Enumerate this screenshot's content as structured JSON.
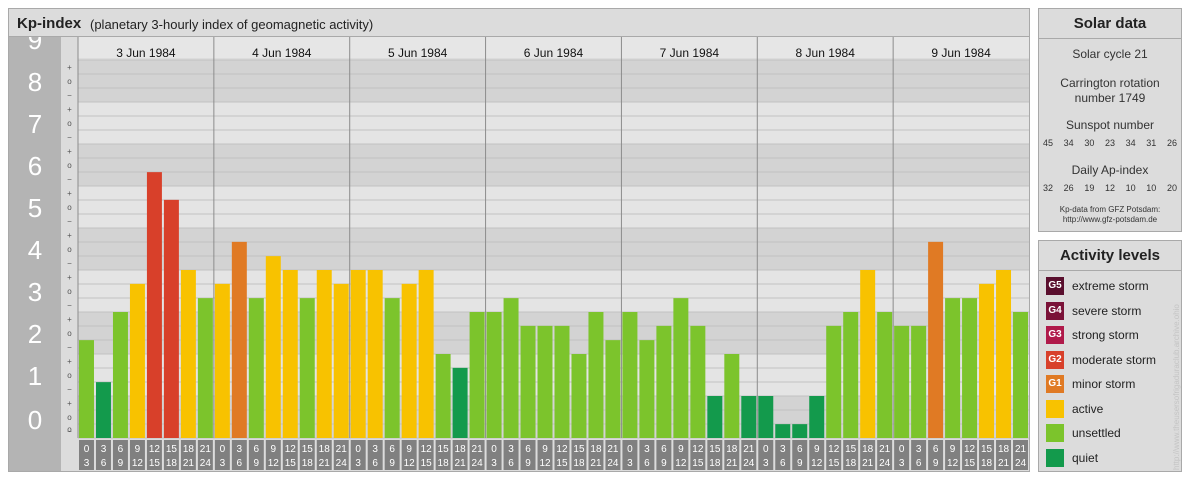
{
  "title": {
    "main": "Kp-index",
    "sub": "(planetary 3-hourly index of geomagnetic activity)"
  },
  "chart_data": {
    "type": "bar",
    "title": "Kp-index",
    "subtitle": "(planetary 3-hourly index of geomagnetic activity)",
    "ylim": [
      0,
      9
    ],
    "y_ticks": [
      "0",
      "1",
      "2",
      "3",
      "4",
      "5",
      "6",
      "7",
      "8",
      "9"
    ],
    "minor_tick_labels": [
      "+",
      "o",
      "−"
    ],
    "days": [
      "3 Jun 1984",
      "4 Jun 1984",
      "5 Jun 1984",
      "6 Jun 1984",
      "7 Jun 1984",
      "8 Jun 1984",
      "9 Jun 1984"
    ],
    "interval_starts": [
      "0",
      "3",
      "6",
      "9",
      "12",
      "15",
      "18",
      "21"
    ],
    "interval_ends": [
      "3",
      "6",
      "9",
      "12",
      "15",
      "18",
      "21",
      "24"
    ],
    "values": [
      2.33,
      1.33,
      3.0,
      3.67,
      6.33,
      5.67,
      4.0,
      3.33,
      3.67,
      4.67,
      3.33,
      4.33,
      4.0,
      3.33,
      4.0,
      3.67,
      4.0,
      4.0,
      3.33,
      3.67,
      4.0,
      2.0,
      1.67,
      3.0,
      3.0,
      3.33,
      2.67,
      2.67,
      2.67,
      2.0,
      3.0,
      2.33,
      3.0,
      2.33,
      2.67,
      3.33,
      2.67,
      1.0,
      2.0,
      1.0,
      1.0,
      0.33,
      0.33,
      1.0,
      2.67,
      3.0,
      4.0,
      3.0,
      2.67,
      2.67,
      4.67,
      3.33,
      3.33,
      3.67,
      4.0,
      3.0
    ],
    "grid": true
  },
  "solar": {
    "title": "Solar data",
    "cycle": "Solar cycle 21",
    "carrington_line1": "Carrington rotation",
    "carrington_line2": "number 1749",
    "sunspot_label": "Sunspot number",
    "sunspot_values": [
      "45",
      "34",
      "30",
      "23",
      "34",
      "31",
      "26"
    ],
    "ap_label": "Daily Ap-index",
    "ap_values": [
      "32",
      "26",
      "19",
      "12",
      "10",
      "10",
      "20"
    ],
    "credit_line1": "Kp-data from GFZ Potsdam:",
    "credit_line2": "http://www.gfz-potsdam.de"
  },
  "activity": {
    "title": "Activity levels",
    "levels": [
      {
        "code": "G5",
        "label": "extreme storm",
        "color": "#5a0f2e"
      },
      {
        "code": "G4",
        "label": "severe storm",
        "color": "#7a1238"
      },
      {
        "code": "G3",
        "label": "strong storm",
        "color": "#b01a4a"
      },
      {
        "code": "G2",
        "label": "moderate storm",
        "color": "#d8402a"
      },
      {
        "code": "G1",
        "label": "minor storm",
        "color": "#e07a24"
      },
      {
        "code": "",
        "label": "active",
        "color": "#f8c200"
      },
      {
        "code": "",
        "label": "unsettled",
        "color": "#7cc42c"
      },
      {
        "code": "",
        "label": "quiet",
        "color": "#139a4c"
      }
    ]
  },
  "colors": {
    "extreme": "#5a0f2e",
    "severe": "#7a1238",
    "strong": "#b01a4a",
    "moderate": "#d8402a",
    "minor": "#e07a24",
    "active": "#f8c200",
    "unsettled": "#7cc42c",
    "quiet": "#139a4c"
  },
  "watermark": "http://www.theusersofrigaduraclub.archive.ohio"
}
